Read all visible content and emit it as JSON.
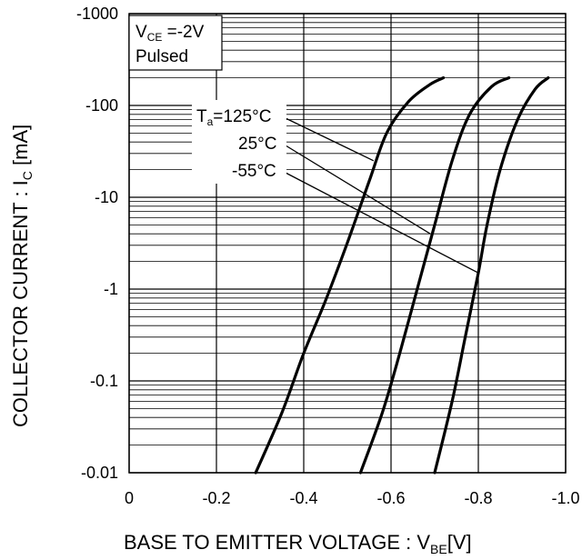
{
  "chart_data": {
    "type": "line",
    "xlabel": {
      "main": "BASE TO EMITTER VOLTAGE : V",
      "sub": "BE",
      "unit": "[V]"
    },
    "ylabel": {
      "main": "COLLECTOR CURRENT : I",
      "sub": "C",
      "unit": "[mA]"
    },
    "xlim": [
      0,
      -1.0
    ],
    "ylim": [
      -0.01,
      -1000
    ],
    "y_scale": "log",
    "grid": true,
    "x_ticks": [
      "0",
      "-0.2",
      "-0.4",
      "-0.6",
      "-0.8",
      "-1.0"
    ],
    "x_tick_values": [
      0,
      -0.2,
      -0.4,
      -0.6,
      -0.8,
      -1.0
    ],
    "y_ticks": [
      "-1000",
      "-100",
      "-10",
      "-1",
      "-0.1",
      "-0.01"
    ],
    "y_tick_values": [
      -1000,
      -100,
      -10,
      -1,
      -0.1,
      -0.01
    ],
    "conditions": {
      "line1_main": "V",
      "line1_sub": "CE",
      "line1_rest": " =-2V",
      "line2": "Pulsed"
    },
    "series": [
      {
        "name": "Ta=125°C",
        "label_main": "T",
        "label_sub": "a",
        "label_rest": "=125°C",
        "x": [
          -0.29,
          -0.35,
          -0.4,
          -0.45,
          -0.5,
          -0.55,
          -0.59,
          -0.64,
          -0.69,
          -0.72
        ],
        "y": [
          -0.01,
          -0.045,
          -0.2,
          -0.75,
          -3.2,
          -15,
          -50,
          -110,
          -170,
          -200
        ]
      },
      {
        "name": "25°C",
        "label_main": "25°C",
        "x": [
          -0.53,
          -0.58,
          -0.62,
          -0.66,
          -0.7,
          -0.74,
          -0.78,
          -0.83,
          -0.87
        ],
        "y": [
          -0.01,
          -0.045,
          -0.2,
          -1.0,
          -5,
          -25,
          -80,
          -160,
          -200
        ]
      },
      {
        "name": "-55°C",
        "label_main": "-55°C",
        "x": [
          -0.7,
          -0.74,
          -0.77,
          -0.8,
          -0.82,
          -0.85,
          -0.89,
          -0.93,
          -0.96
        ],
        "y": [
          -0.01,
          -0.06,
          -0.3,
          -1.5,
          -5,
          -20,
          -70,
          -150,
          -200
        ]
      }
    ]
  }
}
